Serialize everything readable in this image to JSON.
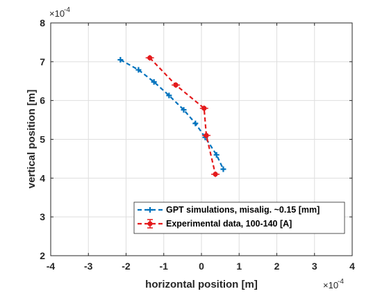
{
  "chart_data": {
    "type": "line",
    "xlabel": "horizontal position [m]",
    "ylabel": "vertical position [m]",
    "x_exponent": {
      "base": "×10",
      "power": "-4"
    },
    "y_exponent": {
      "base": "×10",
      "power": "-4"
    },
    "xlim": [
      -4,
      4
    ],
    "ylim": [
      2,
      8
    ],
    "x_ticks": [
      "-4",
      "-3",
      "-2",
      "-1",
      "0",
      "1",
      "2",
      "3",
      "4"
    ],
    "y_ticks": [
      "2",
      "3",
      "4",
      "5",
      "6",
      "7",
      "8"
    ],
    "grid": true,
    "legend_position": "bottom-right",
    "series": [
      {
        "name": "GPT simulations, misalig. ~0.15 [mm]",
        "color": "#0072BD",
        "line_style": "dashed",
        "marker": "plus",
        "x": [
          -2.15,
          -1.67,
          -1.26,
          -0.86,
          -0.47,
          -0.16,
          0.1,
          0.4,
          0.58
        ],
        "y": [
          7.05,
          6.79,
          6.48,
          6.13,
          5.76,
          5.41,
          5.05,
          4.6,
          4.23
        ]
      },
      {
        "name": "Experimental data, 100-140 [A]",
        "color": "#E41A1C",
        "line_style": "dashed",
        "marker": "filled-circle with error bars",
        "x": [
          -1.37,
          -0.68,
          0.07,
          0.13,
          0.37
        ],
        "y": [
          7.1,
          6.4,
          5.8,
          5.1,
          4.1
        ]
      }
    ]
  }
}
